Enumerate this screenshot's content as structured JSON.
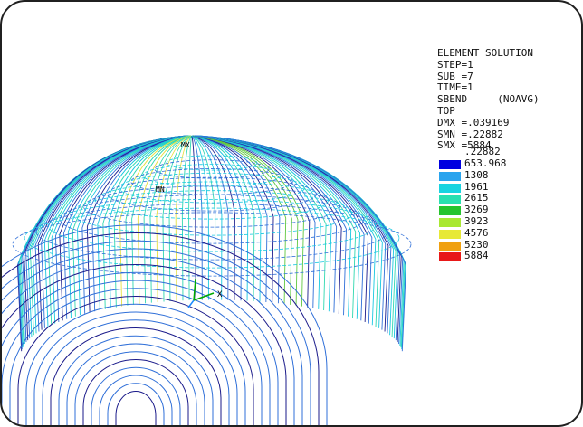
{
  "legend": {
    "header": [
      "ELEMENT SOLUTION",
      "STEP=1",
      "SUB =7",
      "TIME=1",
      "SBEND     (NOAVG)",
      "TOP",
      "DMX =.039169",
      "SMN =.22882",
      "SMX =5884"
    ],
    "min_label": ".22882",
    "bands": [
      {
        "color": "#0000e0",
        "label": "653.968"
      },
      {
        "color": "#29a4ee",
        "label": "1308"
      },
      {
        "color": "#18d4e0",
        "label": "1961"
      },
      {
        "color": "#28e0b0",
        "label": "2615"
      },
      {
        "color": "#25c42e",
        "label": "3269"
      },
      {
        "color": "#a8e832",
        "label": "3923"
      },
      {
        "color": "#e7e936",
        "label": "4576"
      },
      {
        "color": "#f0a010",
        "label": "5230"
      },
      {
        "color": "#e81818",
        "label": "5884"
      }
    ]
  },
  "model": {
    "labels": {
      "mx": "MX",
      "mn": "MN",
      "axis_x": "X"
    },
    "colors": {
      "dark_blue": "#1a1a8a",
      "blue": "#2f6fd8",
      "cyan": "#18c8e0",
      "teal": "#30d8b0",
      "yellow": "#e6e040",
      "green": "#60c840",
      "axis": "#00aa00"
    }
  }
}
